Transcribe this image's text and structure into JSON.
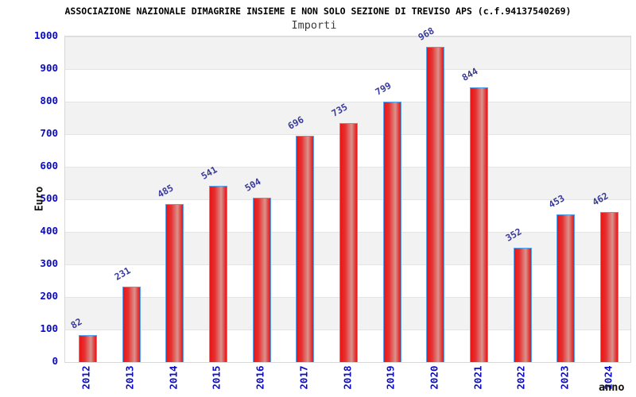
{
  "header": {
    "title": "ASSOCIAZIONE NAZIONALE DIMAGRIRE INSIEME E NON SOLO SEZIONE DI TREVISO APS (c.f.94137540269)",
    "subtitle": "Importi"
  },
  "axes": {
    "y_title": "Euro",
    "x_title": "anno",
    "y_tick_labels": [
      "0",
      "100",
      "200",
      "300",
      "400",
      "500",
      "600",
      "700",
      "800",
      "900",
      "1000"
    ]
  },
  "colors": {
    "axis_tick_label": "#0a0ac8",
    "value_label": "#3a3a99",
    "bar_fill_red": "#ea1616",
    "bar_fill_highlight": "#da938d",
    "bar_border": "#54a3ee",
    "band_gray": "#f2f2f2",
    "band_white": "#ffffff",
    "gridline": "#e4e4e4",
    "plot_border": "#d8d8d8",
    "title_color": "#000000",
    "subtitle_color": "#3c3c3c"
  },
  "chart_data": {
    "type": "bar",
    "title": "ASSOCIAZIONE NAZIONALE DIMAGRIRE INSIEME E NON SOLO SEZIONE DI TREVISO APS (c.f.94137540269)",
    "subtitle": "Importi",
    "xlabel": "anno",
    "ylabel": "Euro",
    "categories": [
      "2012",
      "2013",
      "2014",
      "2015",
      "2016",
      "2017",
      "2018",
      "2019",
      "2020",
      "2021",
      "2022",
      "2023",
      "2024"
    ],
    "values": [
      82,
      231,
      485,
      541,
      504,
      696,
      735,
      799,
      968,
      844,
      352,
      453,
      462
    ],
    "ylim": [
      0,
      1000
    ],
    "ytick_interval": 100,
    "grid": true,
    "bands": "alternating-gray-white",
    "legend": false,
    "value_labels_rotation_deg": -30,
    "xtick_rotation_deg": -90
  }
}
